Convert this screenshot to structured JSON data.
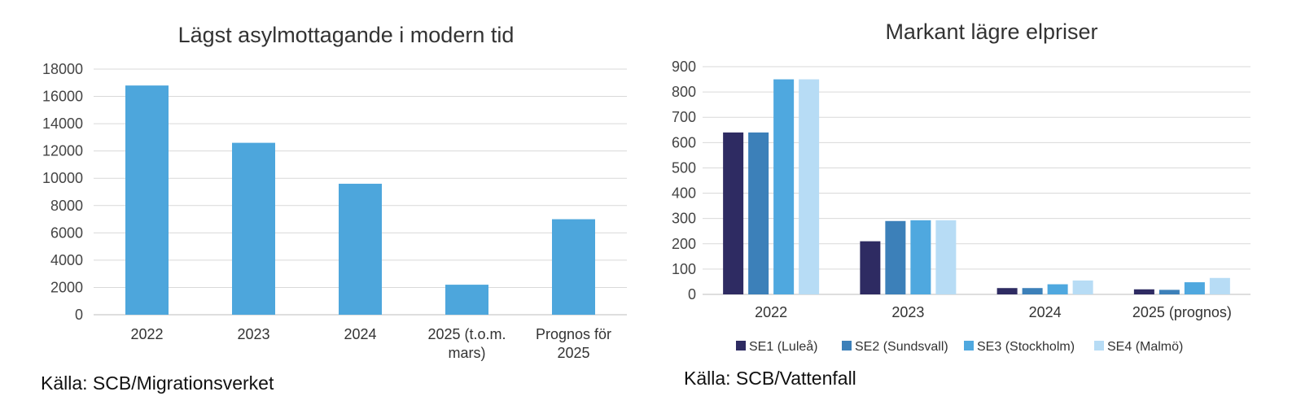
{
  "chart_data": [
    {
      "type": "bar",
      "title": "Lägst asylmottagande i modern tid",
      "categories": [
        "2022",
        "2023",
        "2024",
        "2025 (t.o.m. mars)",
        "Prognos för 2025"
      ],
      "category_lines": [
        [
          "2022"
        ],
        [
          "2023"
        ],
        [
          "2024"
        ],
        [
          "2025 (t.o.m.",
          "mars)"
        ],
        [
          "Prognos för",
          "2025"
        ]
      ],
      "values": [
        16800,
        12600,
        9600,
        2200,
        7000
      ],
      "ylim": [
        0,
        18000
      ],
      "yticks": [
        "0",
        "2000",
        "4000",
        "6000",
        "8000",
        "10000",
        "12000",
        "14000",
        "16000",
        "18000"
      ],
      "grid": true,
      "color": "#4da6dc",
      "source": "Källa: SCB/Migrationsverket"
    },
    {
      "type": "bar",
      "title": "Markant lägre elpriser",
      "categories": [
        "2022",
        "2023",
        "2024",
        "2025 (prognos)"
      ],
      "series": [
        {
          "name": "SE1 (Luleå)",
          "color": "#2e2b62",
          "values": [
            640,
            210,
            25,
            20
          ]
        },
        {
          "name": "SE2 (Sundsvall)",
          "color": "#3c80b9",
          "values": [
            640,
            290,
            25,
            18
          ]
        },
        {
          "name": "SE3 (Stockholm)",
          "color": "#4fa8df",
          "values": [
            850,
            293,
            40,
            48
          ]
        },
        {
          "name": "SE4 (Malmö)",
          "color": "#b7dcf5",
          "values": [
            850,
            293,
            55,
            65
          ]
        }
      ],
      "ylim": [
        0,
        900
      ],
      "yticks": [
        "0",
        "100",
        "200",
        "300",
        "400",
        "500",
        "600",
        "700",
        "800",
        "900"
      ],
      "grid": true,
      "legend_position": "bottom",
      "source": "Källa: SCB/Vattenfall"
    }
  ]
}
